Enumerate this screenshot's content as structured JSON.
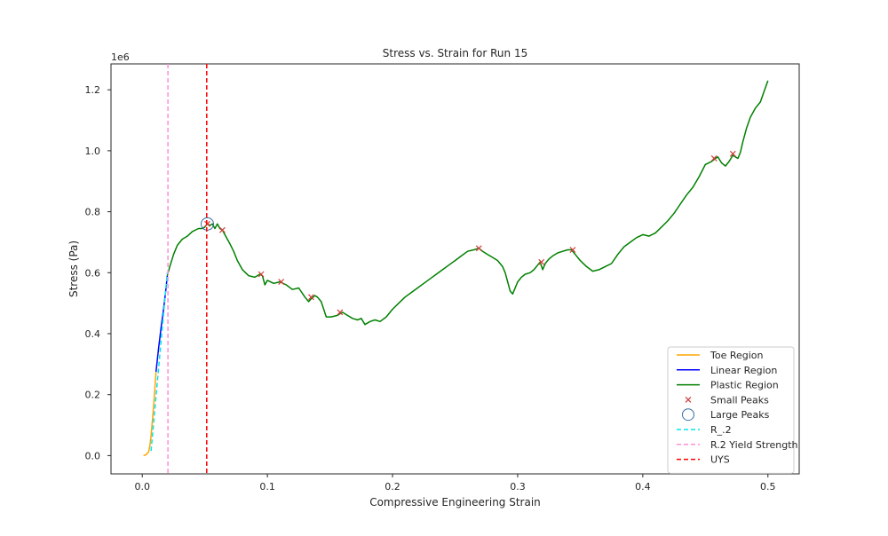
{
  "chart_data": {
    "type": "line",
    "title": "Stress vs. Strain for Run 15",
    "xlabel": "Compressive Engineering Strain",
    "ylabel": "Stress (Pa)",
    "y_offset_text": "1e6",
    "xlim": [
      -0.025,
      0.525
    ],
    "ylim": [
      -0.06,
      1.285
    ],
    "y_unit_multiplier": 1000000,
    "x_ticks": [
      0.0,
      0.1,
      0.2,
      0.3,
      0.4,
      0.5
    ],
    "x_tick_labels": [
      "0.0",
      "0.1",
      "0.2",
      "0.3",
      "0.4",
      "0.5"
    ],
    "y_ticks": [
      0.0,
      0.2,
      0.4,
      0.6,
      0.8,
      1.0,
      1.2
    ],
    "y_tick_labels": [
      "0.0",
      "0.2",
      "0.4",
      "0.6",
      "0.8",
      "1.0",
      "1.2"
    ],
    "grid": false,
    "legend_position": "lower-right",
    "series": [
      {
        "name": "Toe Region",
        "kind": "line",
        "color": "#ffa500",
        "x": [
          0.001,
          0.003,
          0.005,
          0.006,
          0.007,
          0.008,
          0.009,
          0.01,
          0.011
        ],
        "y": [
          0.0,
          0.003,
          0.012,
          0.03,
          0.065,
          0.11,
          0.16,
          0.215,
          0.275
        ]
      },
      {
        "name": "Linear Region",
        "kind": "line",
        "color": "#0000ff",
        "x": [
          0.011,
          0.013,
          0.015,
          0.017,
          0.019,
          0.02
        ],
        "y": [
          0.275,
          0.35,
          0.42,
          0.48,
          0.55,
          0.59
        ]
      },
      {
        "name": "Plastic Region",
        "kind": "line",
        "color": "#008000",
        "x": [
          0.02,
          0.022,
          0.025,
          0.028,
          0.032,
          0.036,
          0.04,
          0.045,
          0.048,
          0.05,
          0.052,
          0.054,
          0.056,
          0.058,
          0.06,
          0.062,
          0.064,
          0.066,
          0.068,
          0.07,
          0.073,
          0.076,
          0.08,
          0.085,
          0.09,
          0.094,
          0.096,
          0.098,
          0.1,
          0.105,
          0.11,
          0.115,
          0.12,
          0.125,
          0.13,
          0.133,
          0.135,
          0.138,
          0.14,
          0.143,
          0.147,
          0.151,
          0.156,
          0.16,
          0.164,
          0.168,
          0.172,
          0.175,
          0.178,
          0.182,
          0.186,
          0.19,
          0.195,
          0.2,
          0.205,
          0.21,
          0.215,
          0.22,
          0.225,
          0.23,
          0.235,
          0.24,
          0.245,
          0.25,
          0.255,
          0.26,
          0.265,
          0.269,
          0.272,
          0.276,
          0.28,
          0.284,
          0.288,
          0.29,
          0.292,
          0.294,
          0.296,
          0.298,
          0.3,
          0.303,
          0.306,
          0.31,
          0.313,
          0.316,
          0.318,
          0.32,
          0.322,
          0.325,
          0.328,
          0.332,
          0.336,
          0.34,
          0.343,
          0.346,
          0.35,
          0.355,
          0.36,
          0.365,
          0.37,
          0.375,
          0.38,
          0.385,
          0.39,
          0.395,
          0.4,
          0.405,
          0.41,
          0.415,
          0.42,
          0.425,
          0.43,
          0.435,
          0.44,
          0.445,
          0.45,
          0.455,
          0.458,
          0.46,
          0.463,
          0.466,
          0.469,
          0.472,
          0.474,
          0.476,
          0.478,
          0.48,
          0.483,
          0.486,
          0.49,
          0.494,
          0.497,
          0.5
        ],
        "y": [
          0.59,
          0.62,
          0.66,
          0.69,
          0.71,
          0.72,
          0.735,
          0.745,
          0.745,
          0.75,
          0.76,
          0.755,
          0.76,
          0.745,
          0.76,
          0.745,
          0.74,
          0.725,
          0.71,
          0.695,
          0.67,
          0.64,
          0.61,
          0.59,
          0.585,
          0.595,
          0.59,
          0.56,
          0.575,
          0.565,
          0.57,
          0.56,
          0.545,
          0.55,
          0.52,
          0.505,
          0.515,
          0.525,
          0.52,
          0.505,
          0.455,
          0.455,
          0.46,
          0.47,
          0.46,
          0.45,
          0.445,
          0.45,
          0.43,
          0.44,
          0.445,
          0.44,
          0.455,
          0.48,
          0.5,
          0.52,
          0.535,
          0.55,
          0.565,
          0.58,
          0.595,
          0.61,
          0.625,
          0.64,
          0.655,
          0.67,
          0.675,
          0.68,
          0.67,
          0.66,
          0.65,
          0.64,
          0.62,
          0.6,
          0.57,
          0.54,
          0.53,
          0.55,
          0.57,
          0.585,
          0.595,
          0.6,
          0.61,
          0.625,
          0.635,
          0.61,
          0.63,
          0.645,
          0.655,
          0.665,
          0.67,
          0.675,
          0.675,
          0.66,
          0.64,
          0.62,
          0.605,
          0.61,
          0.62,
          0.63,
          0.66,
          0.685,
          0.7,
          0.715,
          0.725,
          0.72,
          0.73,
          0.75,
          0.77,
          0.795,
          0.825,
          0.855,
          0.88,
          0.915,
          0.955,
          0.965,
          0.975,
          0.98,
          0.96,
          0.95,
          0.965,
          0.985,
          0.98,
          0.975,
          0.995,
          1.03,
          1.075,
          1.11,
          1.14,
          1.16,
          1.195,
          1.23
        ]
      },
      {
        "name": "Small Peaks",
        "kind": "marker-x",
        "color": "#d63b3b",
        "x": [
          0.052,
          0.064,
          0.095,
          0.111,
          0.135,
          0.158,
          0.269,
          0.319,
          0.344,
          0.457,
          0.472
        ],
        "y": [
          0.76,
          0.74,
          0.595,
          0.57,
          0.52,
          0.47,
          0.68,
          0.635,
          0.675,
          0.975,
          0.99
        ]
      },
      {
        "name": "Large Peaks",
        "kind": "marker-circle",
        "color": "#3a6ea5",
        "x": [
          0.052
        ],
        "y": [
          0.76
        ]
      },
      {
        "name": "R_.2",
        "kind": "dashed-line",
        "color": "#00e5ee",
        "x": [
          0.007,
          0.02
        ],
        "y": [
          0.015,
          0.6
        ]
      },
      {
        "name": "R.2 Yield Strength",
        "kind": "vline",
        "color": "#ff8fd9",
        "x_value": 0.0205
      },
      {
        "name": "UYS",
        "kind": "vline",
        "color": "#ff0000",
        "x_value": 0.0515
      }
    ]
  }
}
